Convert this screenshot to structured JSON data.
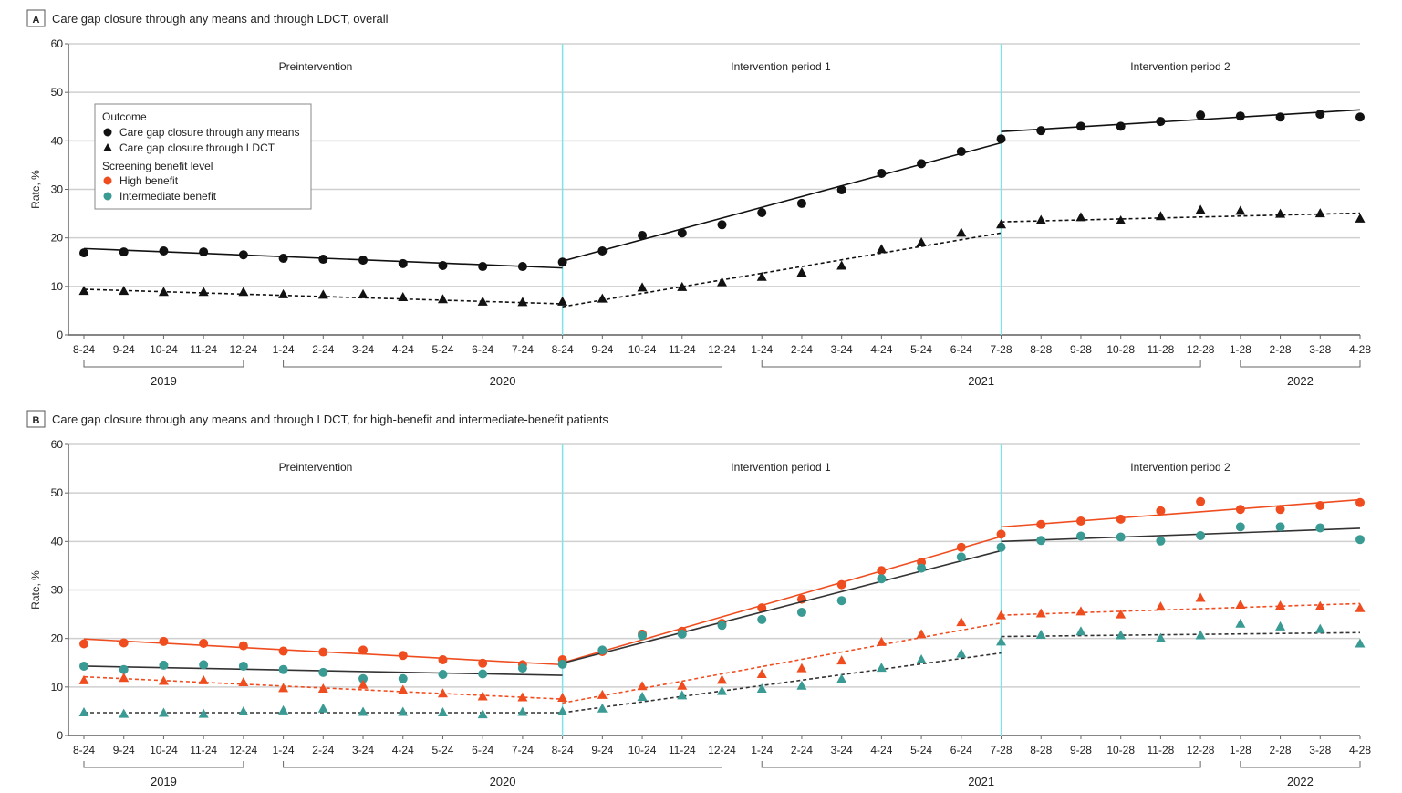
{
  "colors": {
    "overall": "#111111",
    "high": "#ef4d1f",
    "intermediate": "#3a9a94",
    "intervention_line": "#7fe3e8",
    "grid": "#cfcfcf"
  },
  "legend": {
    "outcome_title": "Outcome",
    "outcome_items": [
      {
        "label": "Care gap closure through any means",
        "marker": "circle"
      },
      {
        "label": "Care gap closure through LDCT",
        "marker": "triangle"
      }
    ],
    "benefit_title": "Screening benefit level",
    "benefit_items": [
      {
        "label": "High benefit",
        "color": "#ef4d1f"
      },
      {
        "label": "Intermediate benefit",
        "color": "#3a9a94"
      }
    ]
  },
  "chart_data": [
    {
      "type": "scatter",
      "panel": "A",
      "title": "Care gap closure through any means and through LDCT, overall",
      "ylabel": "Rate, %",
      "ylim": [
        0,
        60
      ],
      "yticks": [
        0,
        10,
        20,
        30,
        40,
        50,
        60
      ],
      "grid": true,
      "legend_placement": "top-left",
      "categories": [
        "8-24",
        "9-24",
        "10-24",
        "11-24",
        "12-24",
        "1-24",
        "2-24",
        "3-24",
        "4-24",
        "5-24",
        "6-24",
        "7-24",
        "8-24",
        "9-24",
        "10-24",
        "11-24",
        "12-24",
        "1-24",
        "2-24",
        "3-24",
        "4-24",
        "5-24",
        "6-24",
        "7-28",
        "8-28",
        "9-28",
        "10-28",
        "11-28",
        "12-28",
        "1-28",
        "2-28",
        "3-28",
        "4-28"
      ],
      "years": [
        {
          "label": "2019",
          "from": 0,
          "to": 4
        },
        {
          "label": "2020",
          "from": 5,
          "to": 16
        },
        {
          "label": "2021",
          "from": 17,
          "to": 28
        },
        {
          "label": "2022",
          "from": 29,
          "to": 32
        }
      ],
      "periods": [
        {
          "label": "Preintervention"
        },
        {
          "label": "Intervention period 1"
        },
        {
          "label": "Intervention period 2"
        }
      ],
      "period_breaks": [
        12,
        23
      ],
      "series": [
        {
          "outcome": "any means",
          "color": "#111111",
          "marker": "circle",
          "line": "solid",
          "values": [
            16.9,
            17.1,
            17.3,
            17.1,
            16.5,
            15.8,
            15.6,
            15.4,
            14.7,
            14.3,
            14.1,
            14.1,
            15.0,
            17.3,
            20.5,
            21.0,
            22.7,
            25.2,
            27.1,
            29.9,
            33.3,
            35.3,
            37.8,
            40.4,
            42.1,
            43.0,
            43.0,
            44.0,
            45.3,
            45.1,
            44.9,
            45.5,
            44.9
          ],
          "trend": [
            [
              0,
              17.8,
              12,
              13.8
            ],
            [
              12,
              15.2,
              23,
              39.6
            ],
            [
              23,
              41.9,
              32,
              46.4
            ]
          ]
        },
        {
          "outcome": "LDCT",
          "color": "#111111",
          "marker": "triangle",
          "line": "dashed",
          "values": [
            9.0,
            9.0,
            8.8,
            8.8,
            8.8,
            8.3,
            8.2,
            8.3,
            7.7,
            7.3,
            6.8,
            6.7,
            6.8,
            7.4,
            9.7,
            9.8,
            10.8,
            11.9,
            12.8,
            14.2,
            17.6,
            19.0,
            21.0,
            22.7,
            23.6,
            24.2,
            23.5,
            24.4,
            25.7,
            25.5,
            24.9,
            25.0,
            23.9
          ],
          "trend": [
            [
              0,
              9.4,
              12,
              6.4
            ],
            [
              12,
              5.8,
              23,
              21.0
            ],
            [
              23,
              23.3,
              32,
              25.1
            ]
          ]
        }
      ]
    },
    {
      "type": "scatter",
      "panel": "B",
      "title": "Care gap closure through any means and through LDCT, for high-benefit and intermediate-benefit patients",
      "ylabel": "Rate, %",
      "ylim": [
        0,
        60
      ],
      "yticks": [
        0,
        10,
        20,
        30,
        40,
        50,
        60
      ],
      "grid": true,
      "categories": [
        "8-24",
        "9-24",
        "10-24",
        "11-24",
        "12-24",
        "1-24",
        "2-24",
        "3-24",
        "4-24",
        "5-24",
        "6-24",
        "7-24",
        "8-24",
        "9-24",
        "10-24",
        "11-24",
        "12-24",
        "1-24",
        "2-24",
        "3-24",
        "4-24",
        "5-24",
        "6-24",
        "7-28",
        "8-28",
        "9-28",
        "10-28",
        "11-28",
        "12-28",
        "1-28",
        "2-28",
        "3-28",
        "4-28"
      ],
      "years": [
        {
          "label": "2019",
          "from": 0,
          "to": 4
        },
        {
          "label": "2020",
          "from": 5,
          "to": 16
        },
        {
          "label": "2021",
          "from": 17,
          "to": 28
        },
        {
          "label": "2022",
          "from": 29,
          "to": 32
        }
      ],
      "periods": [
        {
          "label": "Preintervention"
        },
        {
          "label": "Intervention period 1"
        },
        {
          "label": "Intervention period 2"
        }
      ],
      "period_breaks": [
        12,
        23
      ],
      "series": [
        {
          "outcome": "any means",
          "benefit": "High benefit",
          "color": "#ef4d1f",
          "line_color": "#ef4d1f",
          "marker": "circle",
          "line": "solid",
          "values": [
            18.9,
            19.1,
            19.4,
            19.0,
            18.5,
            17.4,
            17.2,
            17.6,
            16.5,
            15.6,
            14.9,
            14.6,
            15.6,
            17.3,
            20.9,
            21.5,
            23.1,
            26.3,
            28.1,
            31.1,
            34.0,
            35.7,
            38.8,
            41.5,
            43.5,
            44.2,
            44.6,
            46.3,
            48.2,
            46.6,
            46.6,
            47.4,
            48.0
          ],
          "trend": [
            [
              0,
              19.9,
              12,
              14.6
            ],
            [
              12,
              15.0,
              23,
              41.0
            ],
            [
              23,
              43.0,
              32,
              48.6
            ]
          ]
        },
        {
          "outcome": "any means",
          "benefit": "Intermediate benefit",
          "color": "#3a9a94",
          "line_color": "#333333",
          "marker": "circle",
          "line": "solid",
          "values": [
            14.3,
            13.6,
            14.5,
            14.6,
            14.3,
            13.6,
            13.0,
            11.7,
            11.7,
            12.6,
            12.7,
            13.9,
            14.7,
            17.6,
            20.6,
            20.9,
            22.7,
            23.9,
            25.4,
            27.8,
            32.3,
            34.5,
            36.8,
            38.8,
            40.2,
            41.1,
            40.9,
            40.1,
            41.2,
            43.0,
            43.0,
            42.8,
            40.4
          ],
          "trend": [
            [
              0,
              14.3,
              12,
              12.4
            ],
            [
              12,
              14.9,
              23,
              38.1
            ],
            [
              23,
              40.0,
              32,
              42.7
            ]
          ]
        },
        {
          "outcome": "LDCT",
          "benefit": "High benefit",
          "color": "#ef4d1f",
          "line_color": "#ef4d1f",
          "marker": "triangle",
          "line": "dashed",
          "values": [
            11.3,
            11.8,
            11.2,
            11.3,
            10.9,
            9.7,
            9.6,
            10.4,
            9.3,
            8.6,
            8.0,
            7.8,
            7.7,
            8.3,
            10.1,
            10.2,
            11.4,
            12.6,
            13.8,
            15.4,
            19.2,
            20.8,
            23.3,
            24.7,
            25.1,
            25.5,
            24.9,
            26.5,
            28.3,
            26.9,
            26.7,
            26.6,
            26.2
          ],
          "trend": [
            [
              0,
              12.1,
              12,
              7.5
            ],
            [
              12,
              6.7,
              23,
              23.2
            ],
            [
              23,
              24.8,
              32,
              27.2
            ]
          ]
        },
        {
          "outcome": "LDCT",
          "benefit": "Intermediate benefit",
          "color": "#3a9a94",
          "line_color": "#333333",
          "marker": "triangle",
          "line": "dashed",
          "values": [
            4.7,
            4.4,
            4.6,
            4.4,
            4.9,
            5.1,
            5.5,
            4.8,
            4.8,
            4.7,
            4.3,
            4.8,
            4.9,
            5.5,
            7.9,
            8.2,
            9.1,
            9.6,
            10.2,
            11.6,
            13.9,
            15.6,
            16.8,
            19.3,
            20.7,
            21.4,
            20.6,
            20.0,
            20.6,
            23.0,
            22.4,
            21.9,
            18.9
          ],
          "trend": [
            [
              0,
              4.7,
              12,
              4.7
            ],
            [
              12,
              4.7,
              23,
              17.0
            ],
            [
              23,
              20.4,
              32,
              21.2
            ]
          ]
        }
      ]
    }
  ]
}
